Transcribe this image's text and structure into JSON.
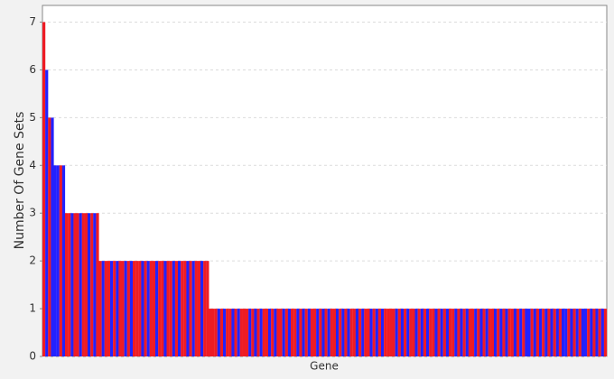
{
  "chart_data": {
    "type": "bar",
    "x_label": "Gene",
    "y_label": "Number Of Gene Sets",
    "ylim": [
      0,
      7.35
    ],
    "yticks": [
      0,
      1,
      2,
      3,
      4,
      5,
      6,
      7
    ],
    "grid": true,
    "palette": [
      "#ee1c24",
      "#2222ff"
    ],
    "categories": [
      null,
      null,
      null,
      null,
      null,
      null,
      null,
      null,
      null,
      null,
      null,
      null,
      null,
      null,
      null,
      null,
      null,
      null,
      null,
      null,
      null,
      null,
      null,
      null,
      null,
      null,
      null,
      null,
      null,
      null,
      null,
      null,
      null,
      null,
      null,
      null,
      null,
      null,
      null,
      null,
      null,
      null,
      null,
      null,
      null,
      null,
      null,
      null,
      null,
      null,
      null,
      null,
      null,
      null,
      null,
      null,
      null,
      null,
      null,
      null,
      null,
      null,
      null,
      null,
      null,
      null,
      null,
      null,
      null,
      null,
      null,
      null,
      null,
      null,
      null,
      null,
      null,
      null,
      null,
      null,
      null,
      null,
      null,
      null,
      null,
      null,
      null,
      null,
      null,
      null,
      null,
      null,
      null,
      null,
      null,
      null,
      null,
      null,
      null,
      null,
      null,
      null,
      null,
      null,
      null,
      null,
      null,
      null,
      null,
      null,
      null,
      null,
      null,
      null,
      null,
      null,
      null,
      null,
      null,
      null,
      null,
      null,
      null,
      null,
      null,
      null,
      null,
      null,
      null,
      null,
      null,
      null,
      null,
      null,
      null,
      null,
      null,
      null,
      null,
      null,
      null,
      null,
      null,
      null,
      null,
      null,
      null,
      null,
      null,
      null,
      null,
      null,
      null,
      null,
      null,
      null,
      null,
      null,
      null,
      null,
      null,
      null,
      null,
      null,
      null,
      null,
      null,
      null,
      null,
      null,
      null,
      null,
      null,
      null,
      null,
      null,
      null,
      null,
      null,
      null,
      null,
      null,
      null,
      null,
      null,
      null,
      null,
      null,
      null,
      null,
      null,
      null,
      null,
      null,
      null,
      null,
      null,
      null,
      null,
      null
    ],
    "values": [
      7,
      6,
      5,
      5,
      4,
      4,
      4,
      4,
      3,
      3,
      3,
      3,
      3,
      3,
      3,
      3,
      3,
      3,
      3,
      3,
      2,
      2,
      2,
      2,
      2,
      2,
      2,
      2,
      2,
      2,
      2,
      2,
      2,
      2,
      2,
      2,
      2,
      2,
      2,
      2,
      2,
      2,
      2,
      2,
      2,
      2,
      2,
      2,
      2,
      2,
      2,
      2,
      2,
      2,
      2,
      2,
      2,
      2,
      2,
      1,
      1,
      1,
      1,
      1,
      1,
      1,
      1,
      1,
      1,
      1,
      1,
      1,
      1,
      1,
      1,
      1,
      1,
      1,
      1,
      1,
      1,
      1,
      1,
      1,
      1,
      1,
      1,
      1,
      1,
      1,
      1,
      1,
      1,
      1,
      1,
      1,
      1,
      1,
      1,
      1,
      1,
      1,
      1,
      1,
      1,
      1,
      1,
      1,
      1,
      1,
      1,
      1,
      1,
      1,
      1,
      1,
      1,
      1,
      1,
      1,
      1,
      1,
      1,
      1,
      1,
      1,
      1,
      1,
      1,
      1,
      1,
      1,
      1,
      1,
      1,
      1,
      1,
      1,
      1,
      1,
      1,
      1,
      1,
      1,
      1,
      1,
      1,
      1,
      1,
      1,
      1,
      1,
      1,
      1,
      1,
      1,
      1,
      1,
      1,
      1,
      1,
      1,
      1,
      1,
      1,
      1,
      1,
      1,
      1,
      1,
      1,
      1,
      1,
      1,
      1,
      1,
      1,
      1,
      1,
      1,
      1,
      1,
      1,
      1,
      1,
      1,
      1,
      1,
      1,
      1,
      1,
      1,
      1,
      1,
      1,
      1,
      1,
      1,
      1,
      1
    ],
    "color_index": [
      0,
      1,
      0,
      1,
      1,
      1,
      0,
      1,
      0,
      0,
      1,
      0,
      0,
      1,
      0,
      0,
      1,
      0,
      1,
      0,
      0,
      1,
      0,
      0,
      1,
      0,
      1,
      0,
      0,
      1,
      0,
      1,
      0,
      0,
      0,
      1,
      0,
      1,
      0,
      0,
      1,
      0,
      0,
      1,
      0,
      0,
      1,
      0,
      1,
      0,
      0,
      1,
      0,
      1,
      0,
      0,
      1,
      0,
      0,
      0,
      0,
      0,
      1,
      0,
      1,
      0,
      0,
      1,
      0,
      1,
      0,
      0,
      0,
      1,
      0,
      1,
      0,
      1,
      0,
      0,
      1,
      0,
      1,
      0,
      0,
      1,
      0,
      1,
      0,
      0,
      1,
      0,
      1,
      0,
      1,
      0,
      0,
      1,
      0,
      1,
      0,
      1,
      0,
      0,
      1,
      0,
      1,
      0,
      1,
      0,
      0,
      1,
      0,
      1,
      0,
      0,
      1,
      0,
      1,
      0,
      1,
      0,
      0,
      0,
      0,
      1,
      0,
      1,
      0,
      1,
      0,
      0,
      1,
      0,
      1,
      0,
      1,
      0,
      0,
      1,
      0,
      1,
      0,
      1,
      0,
      0,
      1,
      0,
      1,
      0,
      1,
      0,
      0,
      1,
      0,
      1,
      0,
      1,
      0,
      0,
      1,
      0,
      1,
      0,
      1,
      0,
      0,
      1,
      0,
      1,
      0,
      1,
      1,
      0,
      1,
      0,
      1,
      0,
      1,
      0,
      1,
      0,
      1,
      0,
      1,
      1,
      0,
      1,
      0,
      1,
      0,
      1,
      1,
      0,
      1,
      0,
      1,
      0,
      1,
      0
    ]
  }
}
